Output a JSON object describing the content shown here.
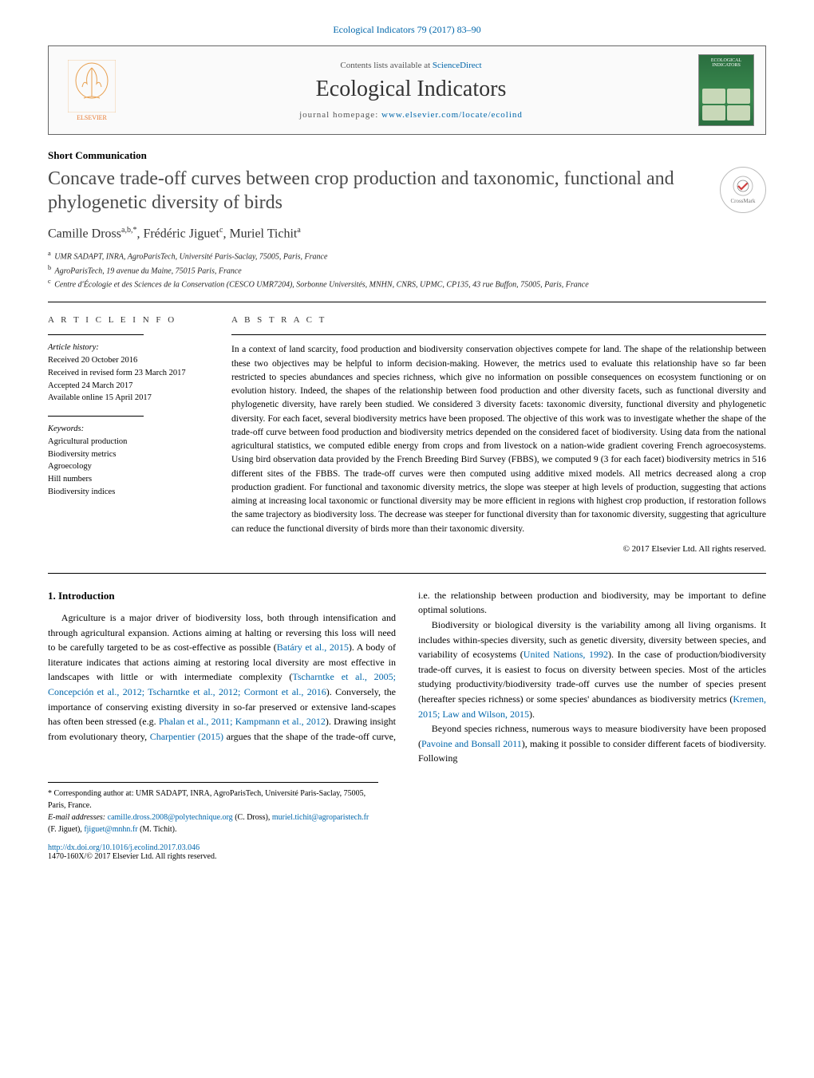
{
  "journal_ref": "Ecological Indicators 79 (2017) 83–90",
  "header": {
    "contents_prefix": "Contents lists available at ",
    "contents_link": "ScienceDirect",
    "journal_name": "Ecological Indicators",
    "homepage_prefix": "journal homepage: ",
    "homepage_link": "www.elsevier.com/locate/ecolind",
    "publisher": "ELSEVIER",
    "cover_label": "ECOLOGICAL INDICATORS"
  },
  "article_type": "Short Communication",
  "crossmark_label": "CrossMark",
  "title": "Concave trade-off curves between crop production and taxonomic, functional and phylogenetic diversity of birds",
  "authors_html": "Camille Dross<sup>a,b,*</sup>, Frédéric Jiguet<sup>c</sup>, Muriel Tichit<sup>a</sup>",
  "affiliations": [
    {
      "sup": "a",
      "text": "UMR SADAPT, INRA, AgroParisTech, Université Paris-Saclay, 75005, Paris, France"
    },
    {
      "sup": "b",
      "text": "AgroParisTech, 19 avenue du Maine, 75015 Paris, France"
    },
    {
      "sup": "c",
      "text": "Centre d'Écologie et des Sciences de la Conservation (CESCO UMR7204), Sorbonne Universités, MNHN, CNRS, UPMC, CP135, 43 rue Buffon, 75005, Paris, France"
    }
  ],
  "article_info": {
    "heading": "a r t i c l e   i n f o",
    "history_label": "Article history:",
    "history": [
      "Received 20 October 2016",
      "Received in revised form 23 March 2017",
      "Accepted 24 March 2017",
      "Available online 15 April 2017"
    ],
    "keywords_label": "Keywords:",
    "keywords": [
      "Agricultural production",
      "Biodiversity metrics",
      "Agroecology",
      "Hill numbers",
      "Biodiversity indices"
    ]
  },
  "abstract": {
    "heading": "a b s t r a c t",
    "text": "In a context of land scarcity, food production and biodiversity conservation objectives compete for land. The shape of the relationship between these two objectives may be helpful to inform decision-making. However, the metrics used to evaluate this relationship have so far been restricted to species abundances and species richness, which give no information on possible consequences on ecosystem functioning or on evolution history. Indeed, the shapes of the relationship between food production and other diversity facets, such as functional diversity and phylogenetic diversity, have rarely been studied. We considered 3 diversity facets: taxonomic diversity, functional diversity and phylogenetic diversity. For each facet, several biodiversity metrics have been proposed. The objective of this work was to investigate whether the shape of the trade-off curve between food production and biodiversity metrics depended on the considered facet of biodiversity. Using data from the national agricultural statistics, we computed edible energy from crops and from livestock on a nation-wide gradient covering French agroecosystems. Using bird observation data provided by the French Breeding Bird Survey (FBBS), we computed 9 (3 for each facet) biodiversity metrics in 516 different sites of the FBBS. The trade-off curves were then computed using additive mixed models. All metrics decreased along a crop production gradient. For functional and taxonomic diversity metrics, the slope was steeper at high levels of production, suggesting that actions aiming at increasing local taxonomic or functional diversity may be more efficient in regions with highest crop production, if restoration follows the same trajectory as biodiversity loss. The decrease was steeper for functional diversity than for taxonomic diversity, suggesting that agriculture can reduce the functional diversity of birds more than their taxonomic diversity.",
    "copyright": "© 2017 Elsevier Ltd. All rights reserved."
  },
  "body": {
    "section_number": "1.",
    "section_title": "Introduction",
    "p1_a": "Agriculture is a major driver of biodiversity loss, both through intensification and through agricultural expansion. Actions aiming at halting or reversing this loss will need to be carefully targeted to be as cost-effective as possible (",
    "p1_c1": "Batáry et al., 2015",
    "p1_b": "). A body of literature indicates that actions aiming at restoring local diversity are most effective in landscapes with little or with intermediate complexity (",
    "p1_c2": "Tscharntke et al., 2005; Concepción et al., 2012; Tscharntke et al., 2012; Cormont et al., 2016",
    "p1_c": "). Conversely, the importance of conserving existing diversity in so-far preserved or extensive land-",
    "p1_d": "scapes has often been stressed (e.g. ",
    "p1_c3": "Phalan et al., 2011; Kampmann et al., 2012",
    "p1_e": "). Drawing insight from evolutionary theory, ",
    "p1_c4": "Charpentier (2015)",
    "p1_f": " argues that the shape of the trade-off curve, i.e. the relationship between production and biodiversity, may be important to define optimal solutions.",
    "p2_a": "Biodiversity or biological diversity is the variability among all living organisms. It includes within-species diversity, such as genetic diversity, diversity between species, and variability of ecosystems (",
    "p2_c1": "United Nations, 1992",
    "p2_b": "). In the case of production/biodiversity trade-off curves, it is easiest to focus on diversity between species. Most of the articles studying productivity/biodiversity trade-off curves use the number of species present (hereafter species richness) or some species' abundances as biodiversity metrics (",
    "p2_c2": "Kremen, 2015; Law and Wilson, 2015",
    "p2_c": ").",
    "p3_a": "Beyond species richness, numerous ways to measure biodiversity have been proposed (",
    "p3_c1": "Pavoine and Bonsall 2011",
    "p3_b": "), making it possible to consider different facets of biodiversity. Following"
  },
  "footnotes": {
    "corr_label": "* Corresponding author at: UMR SADAPT, INRA, AgroParisTech, Université Paris-Saclay, 75005, Paris, France.",
    "email_label": "E-mail addresses: ",
    "emails": [
      {
        "addr": "camille.dross.2008@polytechnique.org",
        "who": " (C. Dross), "
      },
      {
        "addr": "muriel.tichit@agroparistech.fr",
        "who": " (F. Jiguet), "
      },
      {
        "addr": "fjiguet@mnhn.fr",
        "who": " (M. Tichit)."
      }
    ]
  },
  "doi": {
    "link": "http://dx.doi.org/10.1016/j.ecolind.2017.03.046",
    "issn": "1470-160X/© 2017 Elsevier Ltd. All rights reserved."
  },
  "colors": {
    "link": "#0066aa",
    "elsevier": "#e87c34",
    "cover_bg": "#2a6e3f"
  }
}
